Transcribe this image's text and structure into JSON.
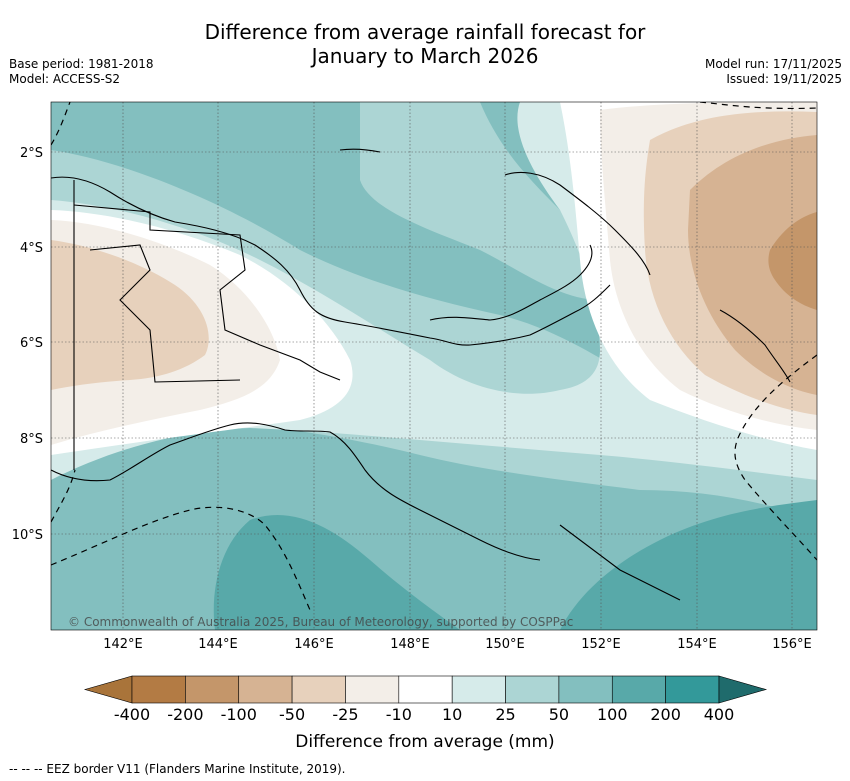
{
  "title_line1": "Difference from average rainfall forecast for",
  "title_line2": "January to March 2026",
  "base_period": "Base period: 1981-2018",
  "model": "Model: ACCESS-S2",
  "model_run": "Model run: 17/11/2025",
  "issued": "Issued: 19/11/2025",
  "map": {
    "lon_labels": [
      "142°E",
      "144°E",
      "146°E",
      "148°E",
      "150°E",
      "152°E",
      "154°E",
      "156°E"
    ],
    "lat_labels": [
      "2°S",
      "4°S",
      "6°S",
      "8°S",
      "10°S"
    ],
    "copyright": "© Commonwealth of Australia 2025, Bureau of Meteorology, supported by COSPPac"
  },
  "colorbar": {
    "tick_labels": [
      "-400",
      "-200",
      "-100",
      "-50",
      "-25",
      "-10",
      "10",
      "25",
      "50",
      "100",
      "200",
      "400"
    ],
    "colors": [
      "#a9743a",
      "#b37b44",
      "#c4966a",
      "#d6b393",
      "#e7d1bc",
      "#f3eee8",
      "#ffffff",
      "#d6ebea",
      "#acd5d4",
      "#83bfbf",
      "#58a9a9",
      "#33999a",
      "#1f6b6c"
    ],
    "label": "Difference from average (mm)"
  },
  "footer": "--  --  -- EEZ border V11 (Flanders Marine Institute, 2019)."
}
